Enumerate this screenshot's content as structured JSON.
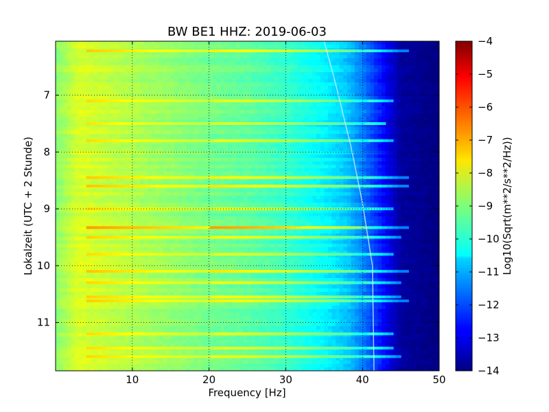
{
  "chart_data": {
    "type": "heatmap",
    "title": "BW BE1 HHZ: 2019-06-03",
    "xlabel": "Frequency [Hz]",
    "ylabel": "Lokalzeit (UTC + 2 Stunde)",
    "xlim": [
      0,
      50
    ],
    "ylim": [
      11.85,
      6.05
    ],
    "x_ticks": [
      10,
      20,
      30,
      40,
      50
    ],
    "y_ticks": [
      7,
      8,
      9,
      10,
      11
    ],
    "grid": true,
    "colormap": "jet",
    "colorbar": {
      "label": "Log10(Sqrt(m**2/s**2/Hz))",
      "range": [
        -14,
        -4
      ],
      "ticks": [
        -4,
        -5,
        -6,
        -7,
        -8,
        -9,
        -10,
        -11,
        -12,
        -13,
        -14
      ]
    },
    "spectrum_profile": [
      {
        "freq": 0,
        "value": -8.9
      },
      {
        "freq": 3,
        "value": -8.1
      },
      {
        "freq": 8,
        "value": -8.4
      },
      {
        "freq": 15,
        "value": -8.8
      },
      {
        "freq": 20,
        "value": -9.1
      },
      {
        "freq": 25,
        "value": -9.3
      },
      {
        "freq": 30,
        "value": -9.7
      },
      {
        "freq": 35,
        "value": -10.3
      },
      {
        "freq": 38,
        "value": -10.8
      },
      {
        "freq": 40,
        "value": -11.5
      },
      {
        "freq": 43,
        "value": -12.8
      },
      {
        "freq": 45,
        "value": -13.7
      },
      {
        "freq": 50,
        "value": -14.0
      }
    ],
    "noise_bands": [
      {
        "time": 6.22,
        "value": -8.3,
        "freq_to": 46
      },
      {
        "time": 7.1,
        "value": -8.6,
        "freq_to": 44
      },
      {
        "time": 7.5,
        "value": -8.7,
        "freq_to": 43
      },
      {
        "time": 7.8,
        "value": -8.6,
        "freq_to": 44
      },
      {
        "time": 8.45,
        "value": -8.3,
        "freq_to": 46
      },
      {
        "time": 8.6,
        "value": -8.2,
        "freq_to": 46
      },
      {
        "time": 9.0,
        "value": -8.6,
        "freq_to": 44
      },
      {
        "time": 9.33,
        "value": -7.5,
        "freq_to": 46
      },
      {
        "time": 9.5,
        "value": -8.4,
        "freq_to": 45
      },
      {
        "time": 9.8,
        "value": -8.6,
        "freq_to": 44
      },
      {
        "time": 10.1,
        "value": -8.2,
        "freq_to": 46
      },
      {
        "time": 10.3,
        "value": -8.5,
        "freq_to": 45
      },
      {
        "time": 10.55,
        "value": -8.4,
        "freq_to": 45
      },
      {
        "time": 10.62,
        "value": -8.3,
        "freq_to": 46
      },
      {
        "time": 11.2,
        "value": -8.6,
        "freq_to": 44
      },
      {
        "time": 11.45,
        "value": -8.6,
        "freq_to": 44
      },
      {
        "time": 11.6,
        "value": -8.5,
        "freq_to": 45
      }
    ],
    "drift_line": [
      {
        "freq": 35.0,
        "time": 6.05
      },
      {
        "freq": 36.5,
        "time": 6.8
      },
      {
        "freq": 38.5,
        "time": 7.9
      },
      {
        "freq": 40.0,
        "time": 8.9
      },
      {
        "freq": 41.3,
        "time": 10.0
      },
      {
        "freq": 41.5,
        "time": 11.85
      }
    ]
  }
}
